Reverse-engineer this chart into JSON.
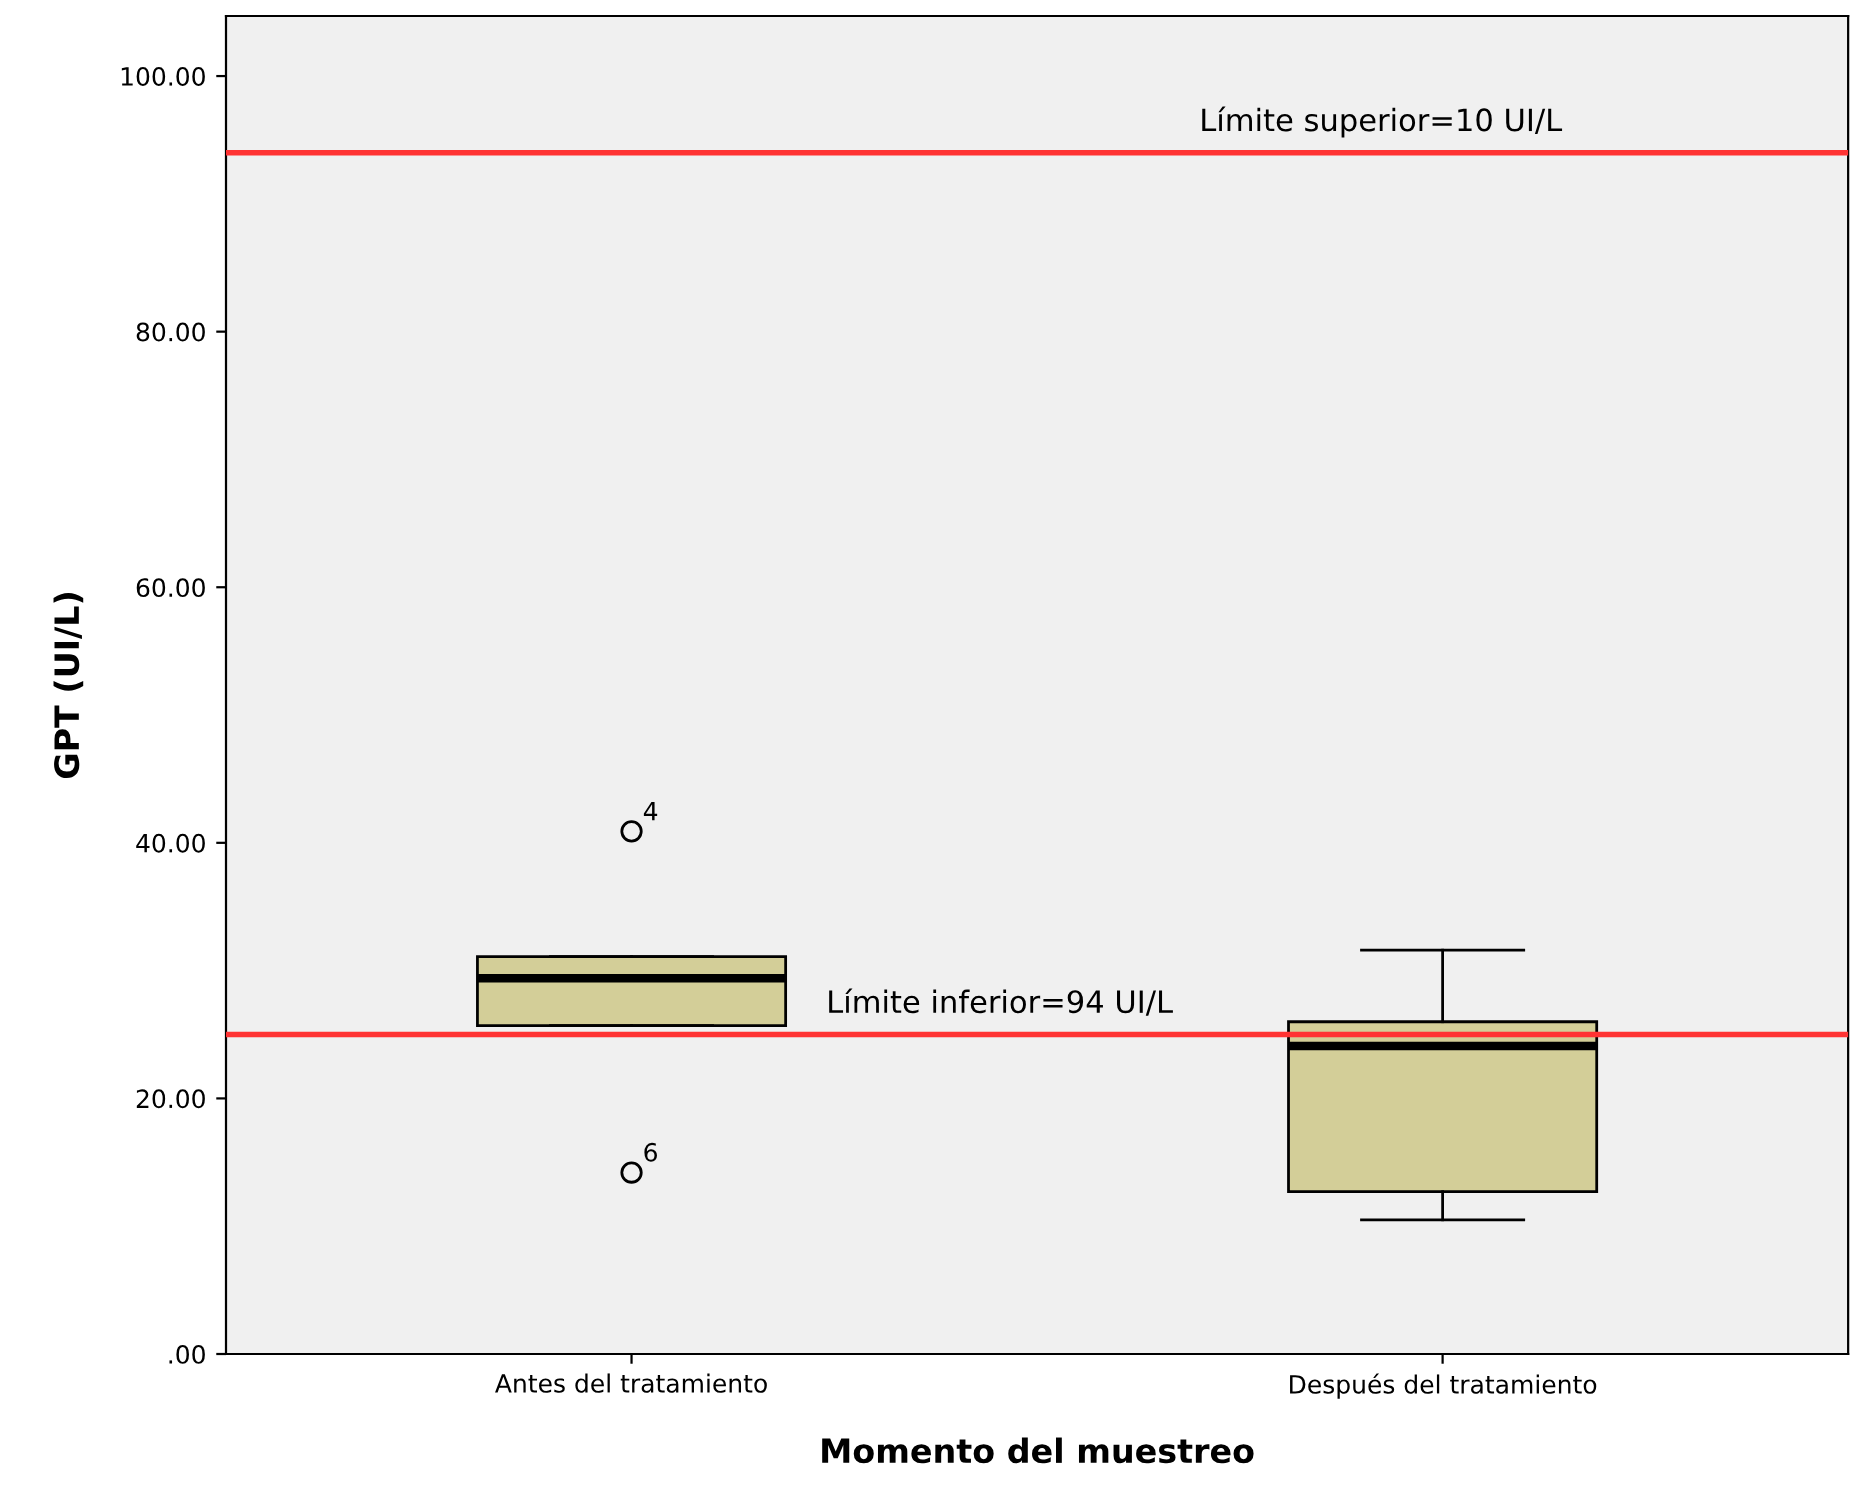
{
  "chart_data": {
    "type": "box",
    "xlabel": "Momento del muestreo",
    "ylabel": "GPT (UI/L)",
    "categories": [
      "Antes del tratamiento",
      "Después del tratamiento"
    ],
    "boxes": [
      {
        "low": 25.7,
        "q1": 25.7,
        "median": 29.4,
        "q3": 31.1,
        "high": 31.1,
        "outliers": [
          40.9,
          14.2
        ]
      },
      {
        "low": 10.5,
        "q1": 12.7,
        "median": 24.1,
        "q3": 26.0,
        "high": 31.6
      }
    ],
    "color": "#d3ce98",
    "ylim": [
      0,
      104.7
    ],
    "yticks": [
      {
        "value": 0,
        "label": ".00"
      },
      {
        "value": 20,
        "label": "20.00"
      },
      {
        "value": 40,
        "label": "40.00"
      },
      {
        "value": 60,
        "label": "60.00"
      },
      {
        "value": 80,
        "label": "80.00"
      },
      {
        "value": 100,
        "label": "100.00"
      }
    ],
    "ref_lines": [
      {
        "axis": "y",
        "value": 94,
        "color": "#ff3333"
      },
      {
        "axis": "y",
        "value": 25,
        "color": "#ff3333"
      }
    ],
    "annotations": [
      "Límite superior=10 UI/L",
      "Límite inferior=94 UI/L",
      "4",
      "6"
    ],
    "grid": false,
    "legend": false
  }
}
